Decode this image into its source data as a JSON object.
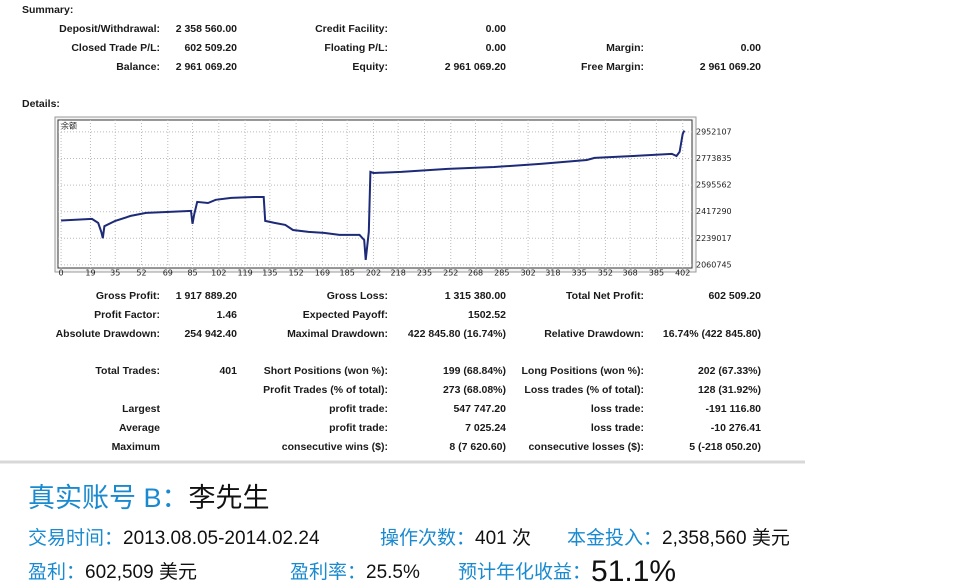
{
  "summary": {
    "title": "Summary:",
    "rows": [
      [
        {
          "label": "Deposit/Withdrawal:",
          "value": "2 358 560.00"
        },
        {
          "label": "Credit Facility:",
          "value": "0.00"
        },
        null
      ],
      [
        {
          "label": "Closed Trade P/L:",
          "value": "602 509.20"
        },
        {
          "label": "Floating P/L:",
          "value": "0.00"
        },
        {
          "label": "Margin:",
          "value": "0.00"
        }
      ],
      [
        {
          "label": "Balance:",
          "value": "2 961 069.20"
        },
        {
          "label": "Equity:",
          "value": "2 961 069.20"
        },
        {
          "label": "Free Margin:",
          "value": "2 961 069.20"
        }
      ]
    ]
  },
  "details": {
    "title": "Details:",
    "chart": {
      "type": "line",
      "label": "余额",
      "color": "#1c2a78",
      "x": [
        0,
        20,
        24,
        26,
        27,
        28,
        35,
        45,
        55,
        70,
        84,
        85,
        86,
        88,
        95,
        100,
        110,
        125,
        131,
        132,
        138,
        145,
        150,
        160,
        170,
        180,
        193,
        196,
        197,
        199,
        200,
        202,
        220,
        250,
        280,
        310,
        340,
        345,
        370,
        395,
        398,
        400,
        402,
        403
      ],
      "values": [
        2358560,
        2369000,
        2342000,
        2282000,
        2240000,
        2320000,
        2356000,
        2389000,
        2409000,
        2416000,
        2423000,
        2336000,
        2396000,
        2483000,
        2476000,
        2497000,
        2510000,
        2516000,
        2516000,
        2356000,
        2342000,
        2329000,
        2295000,
        2282000,
        2275000,
        2262000,
        2262000,
        2228000,
        2094000,
        2282000,
        2684000,
        2677000,
        2684000,
        2704000,
        2717000,
        2738000,
        2764000,
        2778000,
        2791000,
        2805000,
        2791000,
        2818000,
        2939000,
        2961069
      ],
      "xlim": [
        -2,
        408
      ],
      "ylim": [
        2040000,
        3032000
      ],
      "xticks": [
        0,
        19,
        35,
        52,
        69,
        85,
        102,
        119,
        135,
        152,
        169,
        185,
        202,
        218,
        235,
        252,
        268,
        285,
        302,
        318,
        335,
        352,
        368,
        385,
        402
      ],
      "yticks": [
        2060745,
        2239017,
        2417290,
        2595562,
        2773835,
        2952107
      ],
      "grid": true
    },
    "stats": [
      [
        {
          "label": "Gross Profit:",
          "value": "1 917 889.20"
        },
        {
          "label": "Gross Loss:",
          "value": "1 315 380.00"
        },
        {
          "label": "Total Net Profit:",
          "value": "602 509.20"
        }
      ],
      [
        {
          "label": "Profit Factor:",
          "value": "1.46"
        },
        {
          "label": "Expected Payoff:",
          "value": "1502.52"
        },
        null
      ],
      [
        {
          "label": "Absolute Drawdown:",
          "value": "254 942.40"
        },
        {
          "label": "Maximal Drawdown:",
          "value": "422 845.80 (16.74%)"
        },
        {
          "label": "Relative Drawdown:",
          "value": "16.74% (422 845.80)"
        }
      ]
    ],
    "trades": [
      [
        {
          "label": "Total Trades:",
          "value": "401"
        },
        {
          "label": "Short Positions (won %):",
          "value": "199 (68.84%)"
        },
        {
          "label": "Long Positions (won %):",
          "value": "202 (67.33%)"
        }
      ],
      [
        null,
        {
          "label": "Profit Trades (% of total):",
          "value": "273 (68.08%)"
        },
        {
          "label": "Loss trades (% of total):",
          "value": "128 (31.92%)"
        }
      ],
      [
        {
          "label": "Largest"
        },
        {
          "label": "profit trade:",
          "value": "547 747.20"
        },
        {
          "label": "loss trade:",
          "value": "-191 116.80"
        }
      ],
      [
        {
          "label": "Average"
        },
        {
          "label": "profit trade:",
          "value": "7 025.24"
        },
        {
          "label": "loss trade:",
          "value": "-10 276.41"
        }
      ],
      [
        {
          "label": "Maximum"
        },
        {
          "label": "consecutive wins ($):",
          "value": "8 (7 620.60)"
        },
        {
          "label": "consecutive losses ($):",
          "value": "5 (-218 050.20)"
        }
      ]
    ]
  },
  "footer": {
    "account": {
      "prefix": "真实账号 B：",
      "name": "李先生"
    },
    "facts": [
      [
        {
          "label": "交易时间：",
          "value": "2013.08.05-2014.02.24"
        },
        {
          "label": "操作次数：",
          "value": "401 次"
        },
        {
          "label": "本金投入：",
          "value": "2,358,560 美元"
        }
      ],
      [
        {
          "label": "盈利：",
          "value": "602,509 美元"
        },
        {
          "label": "盈利率：",
          "value": "25.5%"
        },
        {
          "label": "预计年化收益：",
          "value": "51.1%"
        }
      ]
    ]
  }
}
